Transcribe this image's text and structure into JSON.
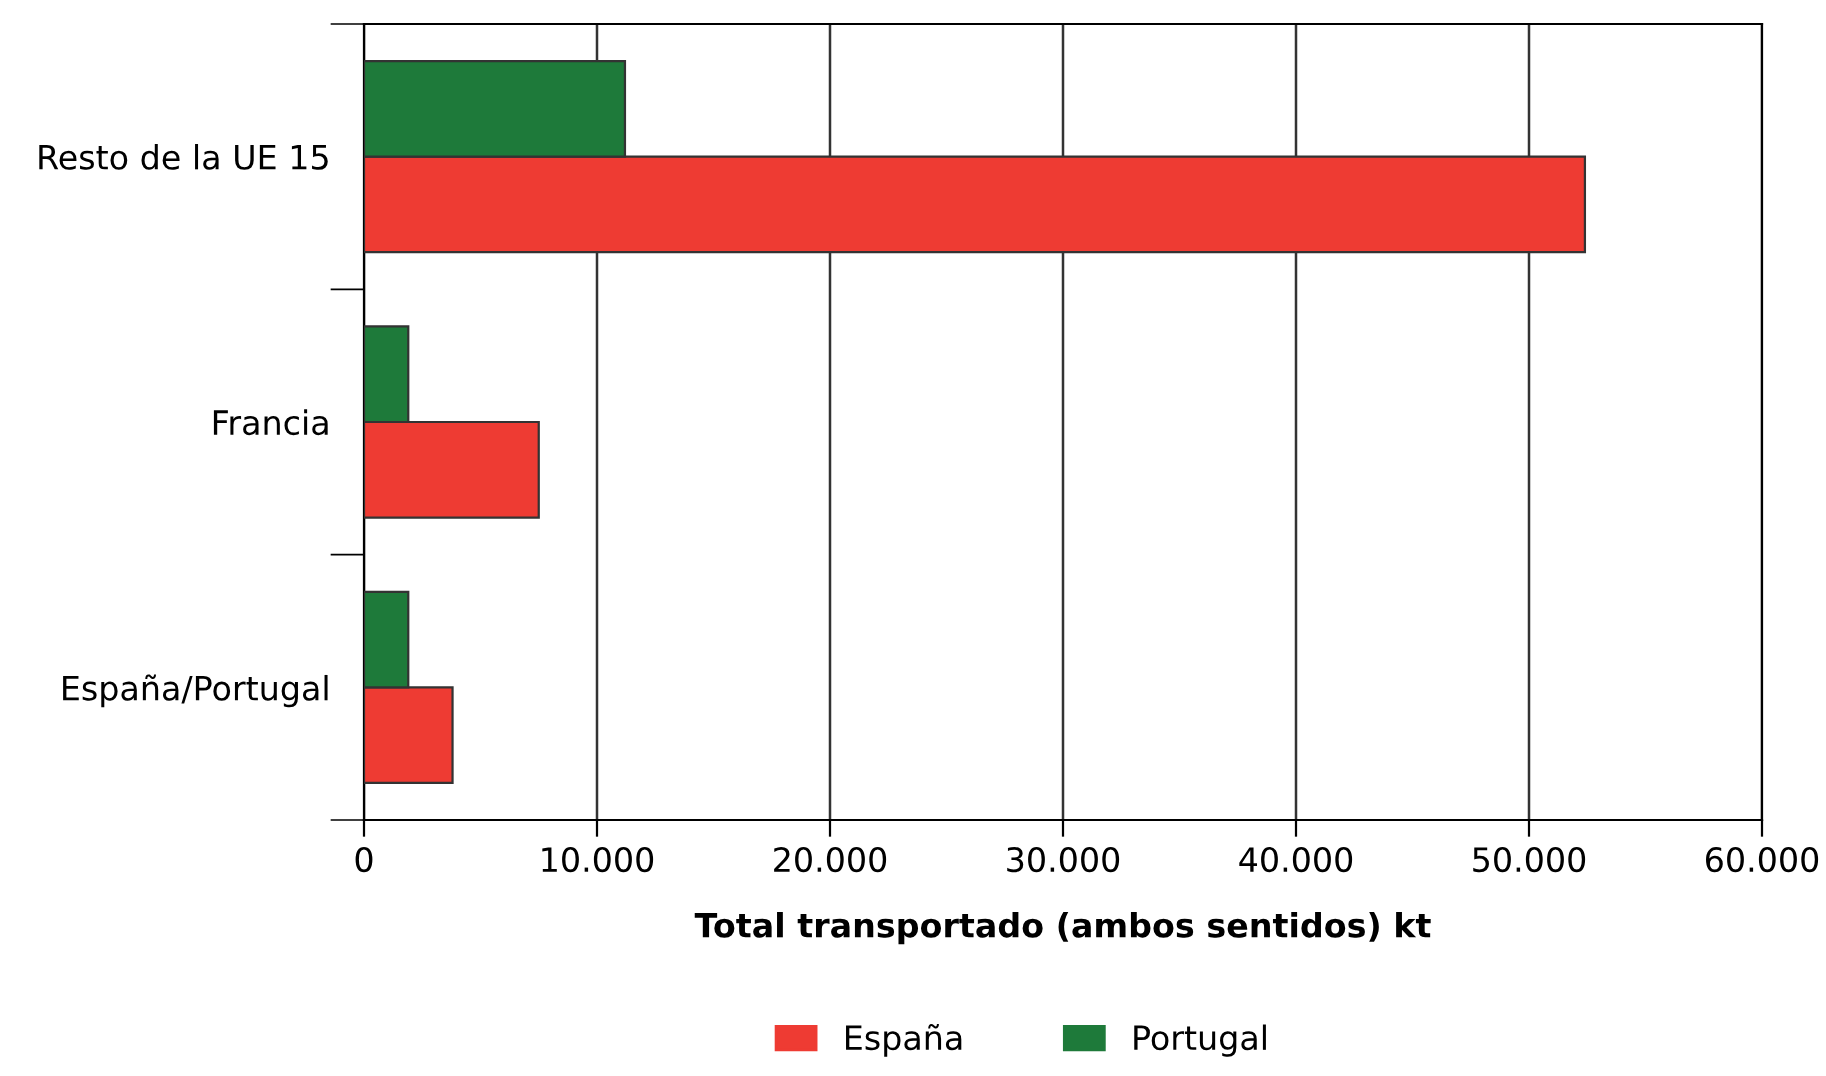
{
  "chart_data": {
    "type": "bar",
    "orientation": "horizontal",
    "xlabel": "Total transportado (ambos sentidos) kt",
    "categories": [
      "Resto de la UE 15",
      "Francia",
      "España/Portugal"
    ],
    "series": [
      {
        "name": "España",
        "color": "#ee3b33",
        "values": [
          52400,
          7500,
          3800
        ]
      },
      {
        "name": "Portugal",
        "color": "#1e7a3a",
        "values": [
          11200,
          1900,
          1900
        ]
      }
    ],
    "xlim": [
      0,
      60000
    ],
    "xticks": [
      0,
      {
        "value": 10000,
        "label": "10.000"
      },
      {
        "value": 20000,
        "label": "20.000"
      },
      {
        "value": 30000,
        "label": "30.000"
      },
      {
        "value": 40000,
        "label": "40.000"
      },
      {
        "value": 50000,
        "label": "50.000"
      },
      {
        "value": 60000,
        "label": "60.000"
      }
    ],
    "grid": "x",
    "legend": "bottom"
  }
}
